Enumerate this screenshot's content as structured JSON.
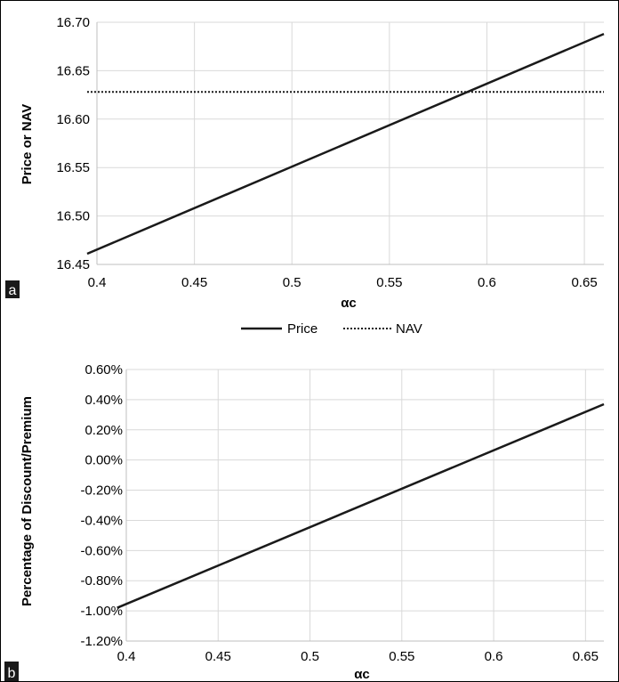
{
  "chart_data": [
    {
      "panel": "a",
      "type": "line",
      "xlabel": "αc",
      "ylabel": "Price or NAV",
      "xlim": [
        0.4,
        0.66
      ],
      "ylim": [
        16.45,
        16.7
      ],
      "x_ticks": [
        "0.4",
        "0.45",
        "0.5",
        "0.55",
        "0.6",
        "0.65"
      ],
      "y_ticks": [
        "16.45",
        "16.50",
        "16.55",
        "16.60",
        "16.65",
        "16.70"
      ],
      "grid": true,
      "legend": {
        "position": "bottom",
        "entries": [
          "Price",
          "NAV"
        ]
      },
      "series": [
        {
          "name": "Price",
          "style": "solid",
          "x": [
            0.395,
            0.66
          ],
          "y": [
            16.461,
            16.688
          ]
        },
        {
          "name": "NAV",
          "style": "dotted",
          "x": [
            0.395,
            0.66
          ],
          "y": [
            16.628,
            16.628
          ]
        }
      ]
    },
    {
      "panel": "b",
      "type": "line",
      "xlabel": "αc",
      "ylabel": "Percentage of Discount/Premium",
      "xlim": [
        0.4,
        0.66
      ],
      "ylim": [
        -1.2,
        0.6
      ],
      "x_ticks": [
        "0.4",
        "0.45",
        "0.5",
        "0.55",
        "0.6",
        "0.65"
      ],
      "y_ticks": [
        "-1.20%",
        "-1.00%",
        "-0.80%",
        "-0.60%",
        "-0.40%",
        "-0.20%",
        "0.00%",
        "0.20%",
        "0.40%",
        "0.60%"
      ],
      "grid": true,
      "series": [
        {
          "name": "",
          "style": "solid",
          "x": [
            0.395,
            0.66
          ],
          "y": [
            -0.98,
            0.37
          ]
        }
      ]
    }
  ],
  "colors": {
    "line": "#1a1a1a",
    "grid": "#d9d9d9",
    "axis": "#bfbfbf",
    "panel_label_bg": "#1a1a1a"
  }
}
